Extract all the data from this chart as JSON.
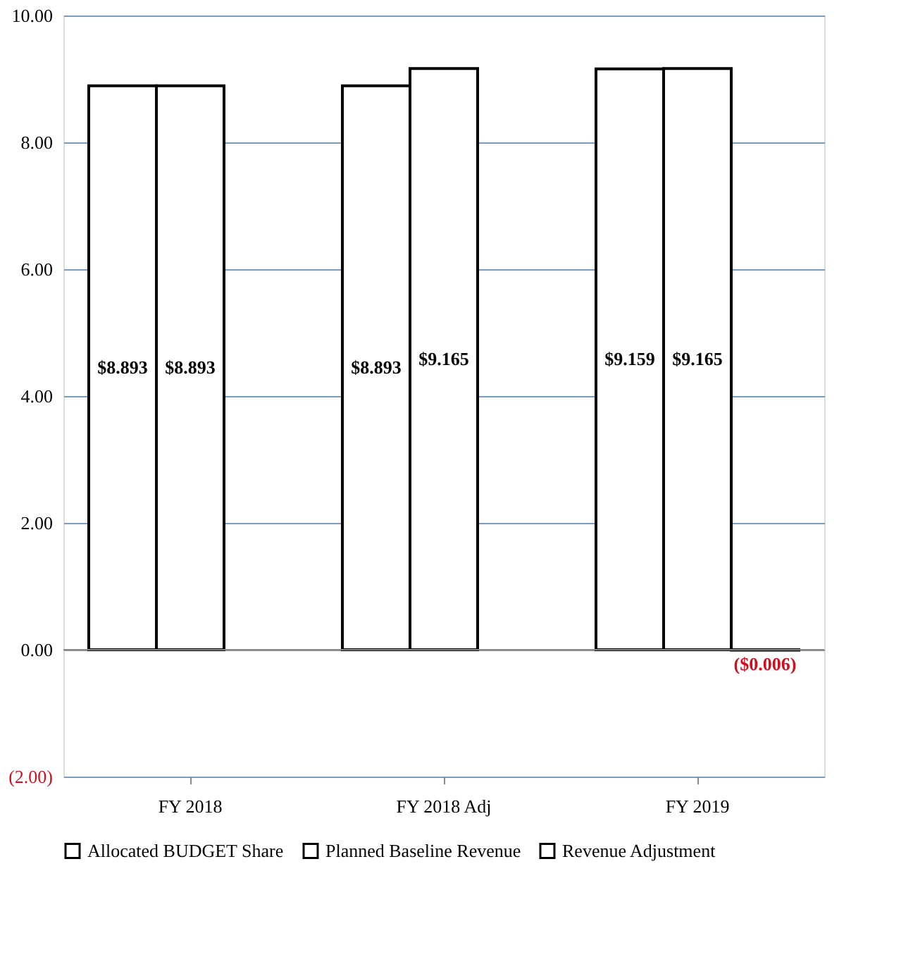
{
  "chart_data": {
    "type": "bar",
    "categories": [
      "FY 2018",
      "FY 2018 Adj",
      "FY 2019"
    ],
    "series": [
      {
        "name": "Allocated BUDGET Share",
        "color": "#ffffff",
        "values": [
          8.893,
          8.893,
          9.159
        ],
        "value_labels": [
          "$8.893",
          "$8.893",
          "$9.159"
        ]
      },
      {
        "name": "Planned Baseline Revenue",
        "color": "#ffffff",
        "values": [
          8.893,
          9.165,
          9.165
        ],
        "value_labels": [
          "$8.893",
          "$9.165",
          "$9.165"
        ]
      },
      {
        "name": "Revenue Adjustment",
        "color": "#ffffff",
        "values": [
          null,
          null,
          -0.006
        ],
        "value_labels": [
          null,
          null,
          "($0.006)"
        ]
      }
    ],
    "ylim": [
      -2,
      10
    ],
    "yticks": [
      {
        "value": -2,
        "label": "(2.00)"
      },
      {
        "value": 0,
        "label": "0.00"
      },
      {
        "value": 2,
        "label": "2.00"
      },
      {
        "value": 4,
        "label": "4.00"
      },
      {
        "value": 6,
        "label": "6.00"
      },
      {
        "value": 8,
        "label": "8.00"
      },
      {
        "value": 10,
        "label": "10.00"
      }
    ],
    "grid": "y",
    "legend": "bottom"
  }
}
